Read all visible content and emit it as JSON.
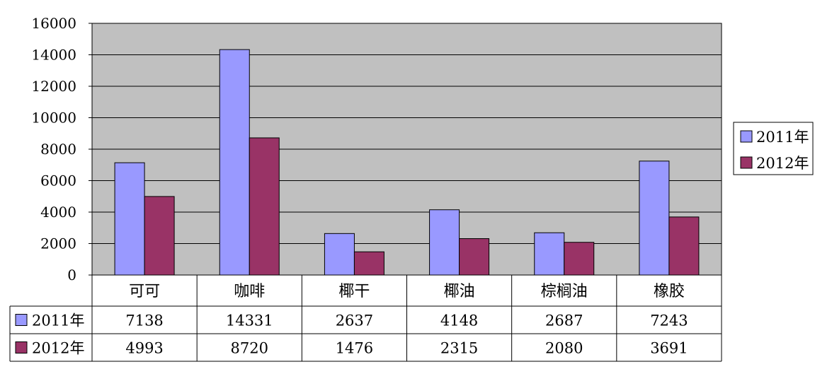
{
  "chart_data": {
    "type": "bar",
    "categories": [
      "可可",
      "咖啡",
      "椰干",
      "椰油",
      "棕榈油",
      "橡胶"
    ],
    "series": [
      {
        "name": "2011年",
        "values": [
          7138,
          14331,
          2637,
          4148,
          2687,
          7243
        ]
      },
      {
        "name": "2012年",
        "values": [
          4993,
          8720,
          1476,
          2315,
          2080,
          3691
        ]
      }
    ],
    "ylim": [
      0,
      16000
    ],
    "y_ticks": [
      0,
      2000,
      4000,
      6000,
      8000,
      10000,
      12000,
      14000,
      16000
    ],
    "grid": true,
    "legend": "right",
    "data_table": true,
    "colors": {
      "plot_background": "#c0c0c0",
      "series": [
        "#9999ff",
        "#993366"
      ],
      "gridline": "#000000",
      "border": "#000000"
    }
  }
}
